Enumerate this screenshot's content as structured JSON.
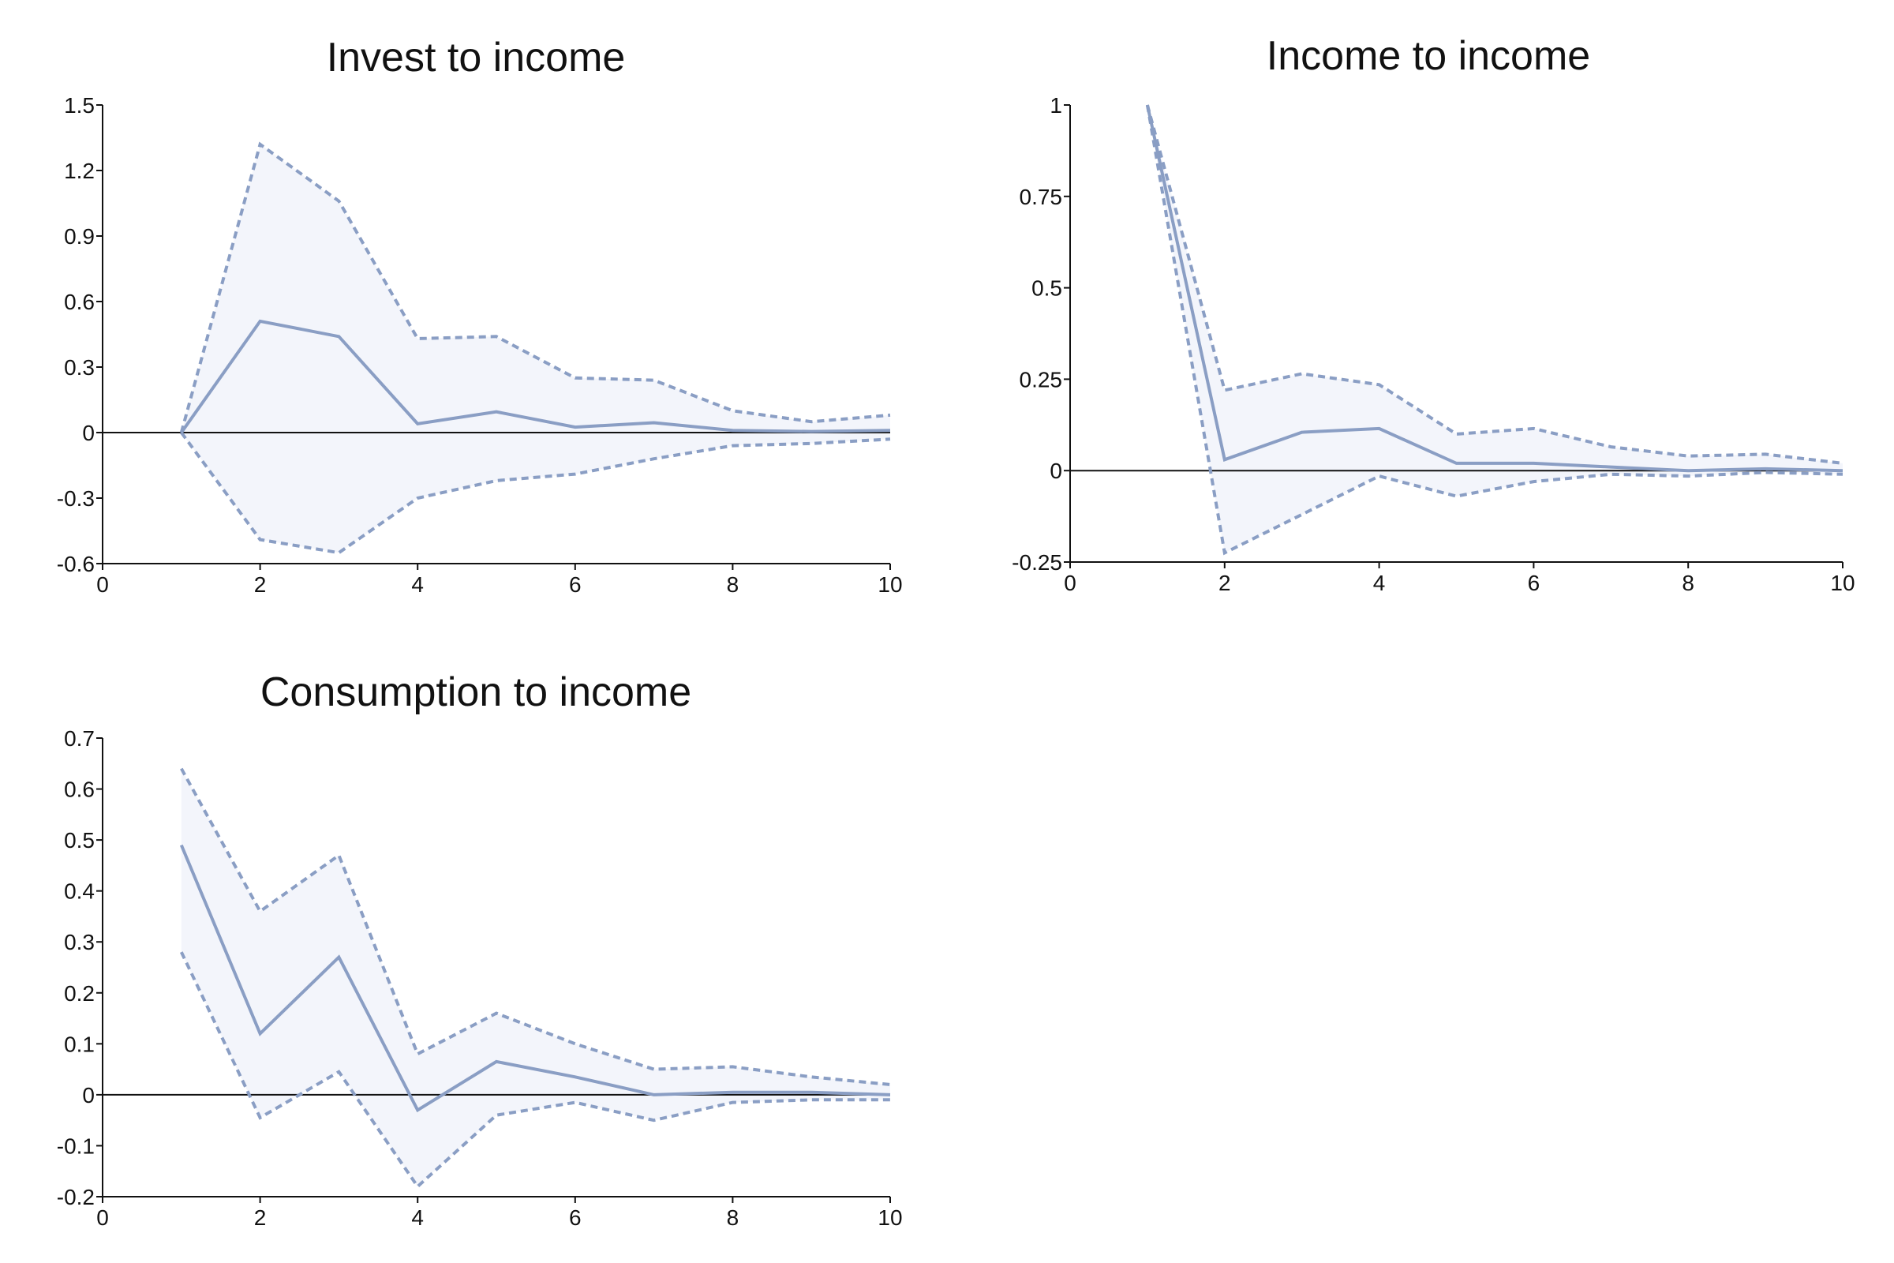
{
  "colors": {
    "line": "#8a9ec4",
    "band": "#f3f5fb",
    "axis": "#111111"
  },
  "chart_data": [
    {
      "type": "line",
      "title": "Invest to income",
      "x": [
        1,
        2,
        3,
        4,
        5,
        6,
        7,
        8,
        9,
        10
      ],
      "series": [
        {
          "role": "irf",
          "values": [
            0,
            0.51,
            0.44,
            0.04,
            0.095,
            0.025,
            0.045,
            0.01,
            0.005,
            0.01
          ]
        },
        {
          "role": "upper",
          "values": [
            0,
            1.32,
            1.06,
            0.43,
            0.44,
            0.25,
            0.24,
            0.1,
            0.05,
            0.08
          ]
        },
        {
          "role": "lower",
          "values": [
            0,
            -0.49,
            -0.55,
            -0.3,
            -0.22,
            -0.19,
            -0.12,
            -0.06,
            -0.05,
            -0.03
          ]
        }
      ],
      "xlim": [
        0,
        10
      ],
      "ylim": [
        -0.6,
        1.5
      ],
      "xticks": [
        0,
        2,
        4,
        6,
        8,
        10
      ],
      "xtick_labels": [
        "0",
        "2",
        "4",
        "6",
        "8",
        "10"
      ],
      "yticks": [
        -0.6,
        -0.3,
        0,
        0.3,
        0.6,
        0.9,
        1.2,
        1.5
      ],
      "ytick_labels": [
        "-0.6",
        "-0.3",
        "0",
        "0.3",
        "0.6",
        "0.9",
        "1.2",
        "1.5"
      ],
      "zero_line": true,
      "grid": false,
      "legend": "none"
    },
    {
      "type": "line",
      "title": "Income to income",
      "x": [
        1,
        2,
        3,
        4,
        5,
        6,
        7,
        8,
        9,
        10
      ],
      "series": [
        {
          "role": "irf",
          "values": [
            1,
            0.03,
            0.105,
            0.115,
            0.02,
            0.02,
            0.01,
            0,
            0.005,
            0
          ]
        },
        {
          "role": "upper",
          "values": [
            1,
            0.22,
            0.265,
            0.235,
            0.1,
            0.115,
            0.065,
            0.04,
            0.045,
            0.02
          ]
        },
        {
          "role": "lower",
          "values": [
            1,
            -0.225,
            -0.12,
            -0.015,
            -0.07,
            -0.03,
            -0.01,
            -0.015,
            -0.005,
            -0.01
          ]
        }
      ],
      "xlim": [
        0,
        10
      ],
      "ylim": [
        -0.25,
        1
      ],
      "xticks": [
        0,
        2,
        4,
        6,
        8,
        10
      ],
      "xtick_labels": [
        "0",
        "2",
        "4",
        "6",
        "8",
        "10"
      ],
      "yticks": [
        -0.25,
        0,
        0.25,
        0.5,
        0.75,
        1
      ],
      "ytick_labels": [
        "-0.25",
        "0",
        "0.25",
        "0.5",
        "0.75",
        "1"
      ],
      "zero_line": true,
      "grid": false,
      "legend": "none"
    },
    {
      "type": "line",
      "title": "Consumption to income",
      "x": [
        1,
        2,
        3,
        4,
        5,
        6,
        7,
        8,
        9,
        10
      ],
      "series": [
        {
          "role": "irf",
          "values": [
            0.49,
            0.12,
            0.27,
            -0.03,
            0.065,
            0.035,
            0,
            0.005,
            0.005,
            0
          ]
        },
        {
          "role": "upper",
          "values": [
            0.64,
            0.36,
            0.47,
            0.08,
            0.16,
            0.1,
            0.05,
            0.055,
            0.035,
            0.02
          ]
        },
        {
          "role": "lower",
          "values": [
            0.28,
            -0.045,
            0.045,
            -0.18,
            -0.04,
            -0.015,
            -0.05,
            -0.015,
            -0.01,
            -0.01
          ]
        }
      ],
      "xlim": [
        0,
        10
      ],
      "ylim": [
        -0.2,
        0.7
      ],
      "xticks": [
        0,
        2,
        4,
        6,
        8,
        10
      ],
      "xtick_labels": [
        "0",
        "2",
        "4",
        "6",
        "8",
        "10"
      ],
      "yticks": [
        -0.2,
        -0.1,
        0,
        0.1,
        0.2,
        0.3,
        0.4,
        0.5,
        0.6,
        0.7
      ],
      "ytick_labels": [
        "-0.2",
        "-0.1",
        "0",
        "0.1",
        "0.2",
        "0.3",
        "0.4",
        "0.5",
        "0.6",
        "0.7"
      ],
      "zero_line": true,
      "grid": false,
      "legend": "none"
    }
  ]
}
